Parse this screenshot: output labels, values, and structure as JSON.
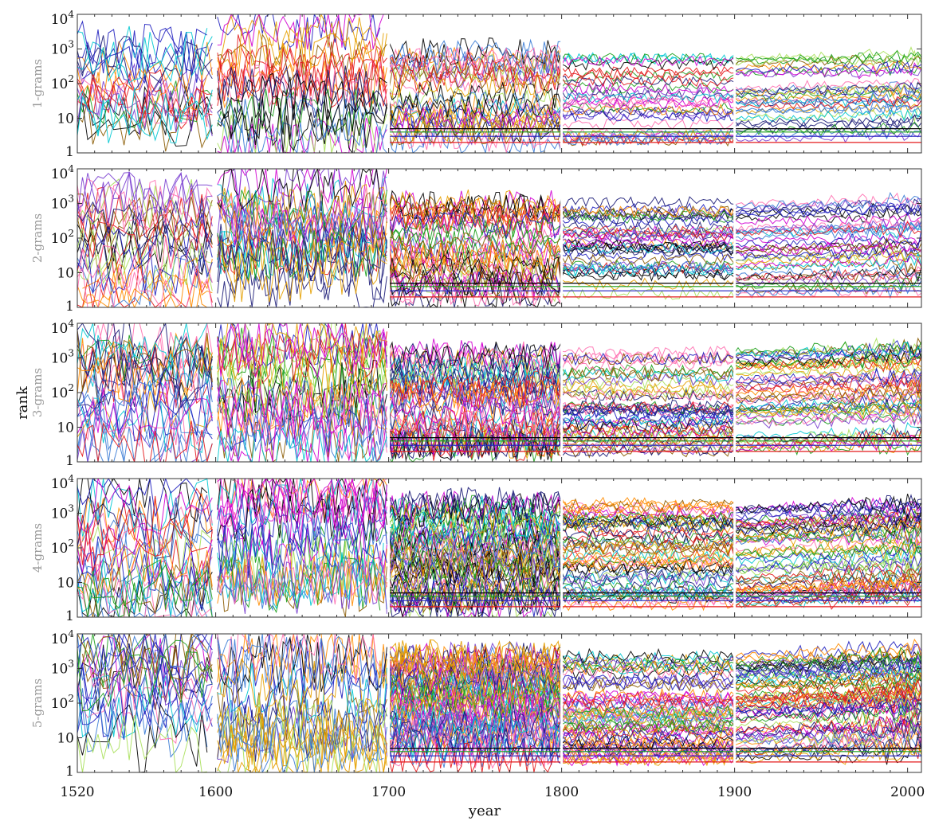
{
  "chart_data": {
    "type": "line",
    "xlabel": "year",
    "ylabel": "rank",
    "xlim": [
      1520,
      2008
    ],
    "ylim": [
      1,
      10000
    ],
    "yscale": "log",
    "x_ticks": [
      1520,
      1600,
      1700,
      1800,
      1900,
      2000
    ],
    "x_tick_labels": [
      "1520",
      "1600",
      "1700",
      "1800",
      "1900",
      "2000"
    ],
    "y_ticks": [
      {
        "value": 1,
        "mant": "1",
        "exp": ""
      },
      {
        "value": 10,
        "mant": "10",
        "exp": ""
      },
      {
        "value": 100,
        "mant": "10",
        "exp": "2"
      },
      {
        "value": 1000,
        "mant": "10",
        "exp": "3"
      },
      {
        "value": 10000,
        "mant": "10",
        "exp": "4"
      }
    ],
    "segment_breaks": [
      1600,
      1700,
      1800,
      1900
    ],
    "grid": false,
    "legend": "none",
    "palette": [
      "#e41a1c",
      "#1f1fbf",
      "#1a9e1a",
      "#000000",
      "#00c8d2",
      "#d200d2",
      "#e6a000",
      "#1c1c78",
      "#ff6fb0",
      "#7a3fd0",
      "#8a5a00",
      "#a8e05a",
      "#ff8c00",
      "#3a7bd5"
    ],
    "panels": [
      {
        "label": "1-grams",
        "density": 1.0,
        "spread": 0.55,
        "span": 1.0,
        "seed": 11
      },
      {
        "label": "2-grams",
        "density": 1.2,
        "spread": 0.65,
        "span": 1.0,
        "seed": 23
      },
      {
        "label": "3-grams",
        "density": 1.5,
        "spread": 0.8,
        "span": 0.85,
        "seed": 37
      },
      {
        "label": "4-grams",
        "density": 1.7,
        "spread": 0.9,
        "span": 0.7,
        "seed": 53
      },
      {
        "label": "5-grams",
        "density": 2.0,
        "spread": 1.0,
        "span": 0.5,
        "seed": 71
      }
    ]
  }
}
